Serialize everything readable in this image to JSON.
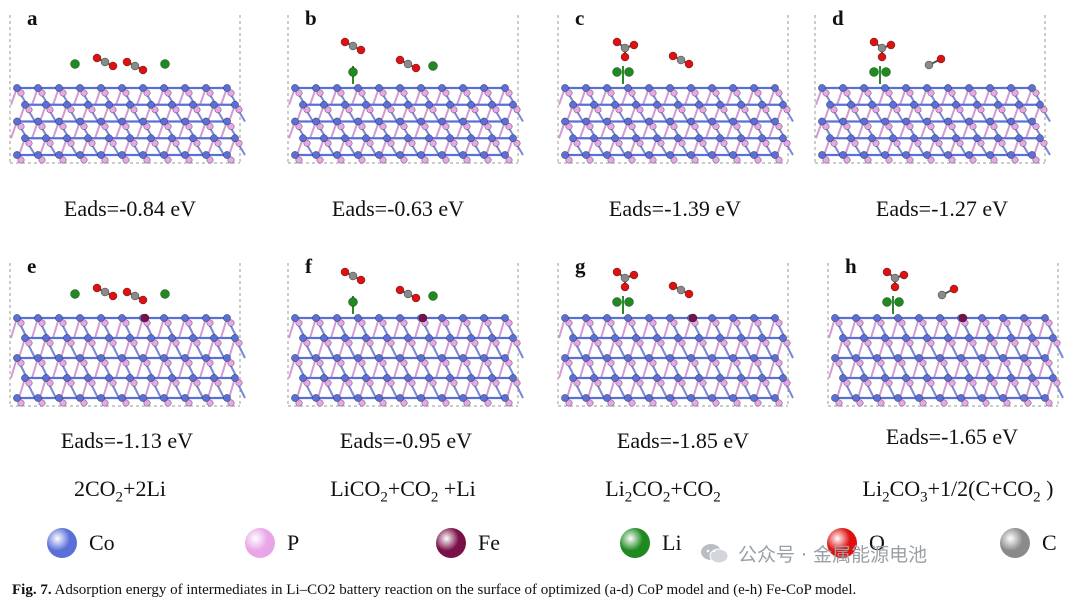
{
  "panels": [
    {
      "label": "a",
      "eads": "Eads=-0.84 eV",
      "fe": false
    },
    {
      "label": "b",
      "eads": "Eads=-0.63 eV",
      "fe": false
    },
    {
      "label": "c",
      "eads": "Eads=-1.39 eV",
      "fe": false
    },
    {
      "label": "d",
      "eads": "Eads=-1.27 eV",
      "fe": false
    },
    {
      "label": "e",
      "eads": "Eads=-1.13 eV",
      "fe": true
    },
    {
      "label": "f",
      "eads": "Eads=-0.95 eV",
      "fe": true
    },
    {
      "label": "g",
      "eads": "Eads=-1.85 eV",
      "fe": true
    },
    {
      "label": "h",
      "eads": "Eads=-1.65 eV",
      "fe": true
    }
  ],
  "reactions": [
    {
      "parts": [
        [
          "2CO",
          ""
        ],
        [
          "2",
          ""
        ],
        [
          "+2Li",
          ""
        ]
      ]
    },
    {
      "parts": [
        [
          "LiCO",
          ""
        ],
        [
          "2",
          ""
        ],
        [
          "+CO",
          ""
        ],
        [
          "2",
          ""
        ],
        [
          " +Li",
          ""
        ]
      ]
    },
    {
      "parts": [
        [
          "Li",
          ""
        ],
        [
          "2",
          ""
        ],
        [
          "CO",
          ""
        ],
        [
          "2",
          ""
        ],
        [
          "+CO",
          ""
        ],
        [
          "2",
          ""
        ]
      ]
    },
    {
      "parts": [
        [
          "Li",
          ""
        ],
        [
          "2",
          ""
        ],
        [
          "CO",
          ""
        ],
        [
          "3",
          ""
        ],
        [
          "+1/2(C+CO",
          ""
        ],
        [
          "2",
          ""
        ],
        [
          " )",
          ""
        ]
      ]
    }
  ],
  "reaction_text": [
    "2CO2+2Li",
    "LiCO2+CO2 +Li",
    "Li2CO2+CO2",
    "Li2CO3+1/2(C+CO2 )"
  ],
  "legend": [
    {
      "name": "Co",
      "color": "#5b6fd8"
    },
    {
      "name": "P",
      "color": "#e8a6e8"
    },
    {
      "name": "Fe",
      "color": "#7a1048"
    },
    {
      "name": "Li",
      "color": "#1f8a1f"
    },
    {
      "name": "O",
      "color": "#e01010"
    },
    {
      "name": "C",
      "color": "#8a8a8a"
    }
  ],
  "caption": {
    "fig": "Fig. 7.",
    "text": "Adsorption energy of intermediates in Li–CO2 battery reaction on the surface of optimized (a-d) CoP model and (e-h) Fe-CoP model."
  },
  "watermark": "公众号 · 金属能源电池"
}
